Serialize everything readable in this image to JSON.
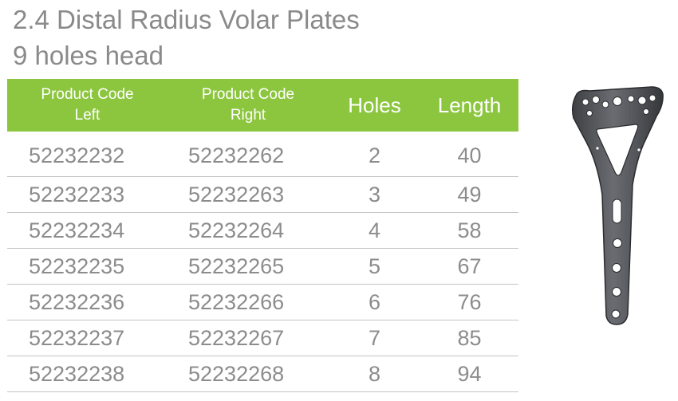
{
  "title": {
    "line1": "2.4 Distal Radius Volar Plates",
    "line2": "9 holes head"
  },
  "table": {
    "headers": {
      "left_line1": "Product Code",
      "left_line2": "Left",
      "right_line1": "Product Code",
      "right_line2": "Right",
      "holes": "Holes",
      "length": "Length"
    },
    "rows": [
      {
        "left": "52232232",
        "right": "52232262",
        "holes": "2",
        "length": "40"
      },
      {
        "left": "52232233",
        "right": "52232263",
        "holes": "3",
        "length": "49"
      },
      {
        "left": "52232234",
        "right": "52232264",
        "holes": "4",
        "length": "58"
      },
      {
        "left": "52232235",
        "right": "52232265",
        "holes": "5",
        "length": "67"
      },
      {
        "left": "52232236",
        "right": "52232266",
        "holes": "6",
        "length": "76"
      },
      {
        "left": "52232237",
        "right": "52232267",
        "holes": "7",
        "length": "85"
      },
      {
        "left": "52232238",
        "right": "52232268",
        "holes": "8",
        "length": "94"
      }
    ]
  },
  "colors": {
    "header_green": "#8cc63f",
    "text_gray": "#8c8c8c",
    "plate_metal": "#5a5c60"
  },
  "image": {
    "icon": "volar-plate-product-image"
  }
}
